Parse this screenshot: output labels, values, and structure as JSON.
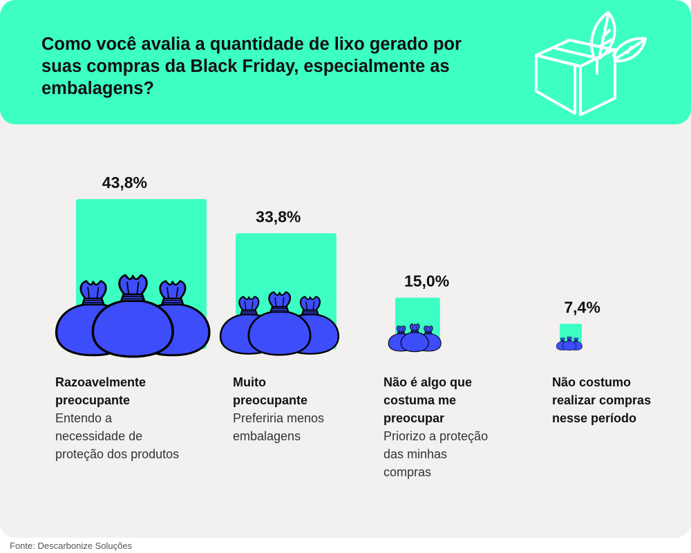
{
  "title": "Como você avalia a quantidade de lixo gerado por suas compras da Black Friday, especialmente as embalagens?",
  "source": "Fonte: Descarbonize Soluções",
  "colors": {
    "header": "#3dffc3",
    "bar": "#3dffc3",
    "bag": "#3d4dfa",
    "bag_outline": "#000000",
    "background": "#f2f1f0"
  },
  "header_icon": "box-with-leaves-icon",
  "bar_icon": "trash-bags-icon",
  "chart_data": {
    "type": "bar",
    "title": "Como você avalia a quantidade de lixo gerado por suas compras da Black Friday, especialmente as embalagens?",
    "unit": "%",
    "categories": [
      {
        "title": "Razoavelmente preocupante",
        "description": "Entendo a necessidade de proteção dos produtos"
      },
      {
        "title": "Muito preocupante",
        "description": "Preferiria menos embalagens"
      },
      {
        "title": "Não é algo que costuma me preocupar",
        "description": "Priorizo a proteção das minhas compras"
      },
      {
        "title": "Não costumo realizar compras nesse período",
        "description": ""
      }
    ],
    "values": [
      43.8,
      33.8,
      15.0,
      7.4
    ],
    "value_labels": [
      "43,8%",
      "33,8%",
      "15,0%",
      "7,4%"
    ]
  }
}
